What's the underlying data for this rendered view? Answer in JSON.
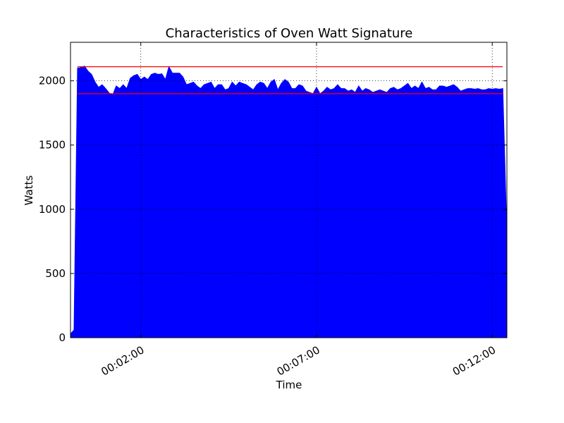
{
  "chart_data": {
    "type": "area",
    "title": "Characteristics of Oven Watt Signature",
    "xlabel": "Time",
    "ylabel": "Watts",
    "xlim": [
      0,
      745
    ],
    "ylim": [
      0,
      2300
    ],
    "x_unit": "seconds",
    "x_ticks": [
      {
        "value": 120,
        "label": "00:02:00"
      },
      {
        "value": 420,
        "label": "00:07:00"
      },
      {
        "value": 720,
        "label": "00:12:00"
      }
    ],
    "y_ticks": [
      0,
      500,
      1000,
      1500,
      2000
    ],
    "grid": true,
    "fill_color": "#0000ff",
    "series": [
      {
        "x": [
          0,
          6,
          12,
          15,
          24,
          30,
          36,
          42,
          48,
          54,
          60,
          66,
          72,
          78,
          84,
          90,
          96,
          102,
          108,
          114,
          120,
          126,
          132,
          138,
          144,
          150,
          156,
          162,
          168,
          174,
          180,
          186,
          192,
          198,
          204,
          210,
          216,
          222,
          228,
          234,
          240,
          246,
          252,
          258,
          264,
          270,
          276,
          282,
          288,
          294,
          300,
          306,
          312,
          318,
          324,
          330,
          336,
          342,
          348,
          354,
          360,
          366,
          372,
          378,
          384,
          390,
          396,
          402,
          408,
          414,
          420,
          426,
          432,
          438,
          444,
          450,
          456,
          462,
          468,
          474,
          480,
          486,
          492,
          498,
          504,
          510,
          516,
          522,
          528,
          534,
          540,
          546,
          552,
          558,
          564,
          570,
          576,
          582,
          588,
          594,
          600,
          606,
          612,
          618,
          624,
          630,
          636,
          642,
          648,
          654,
          660,
          666,
          672,
          678,
          684,
          690,
          696,
          702,
          708,
          714,
          720,
          726,
          732,
          738,
          745
        ],
        "y": [
          30,
          60,
          2100,
          2100,
          2115,
          2075,
          2050,
          1990,
          1950,
          1970,
          1940,
          1905,
          1890,
          1960,
          1940,
          1970,
          1940,
          2020,
          2040,
          2050,
          2010,
          2030,
          2010,
          2050,
          2060,
          2050,
          2055,
          2010,
          2110,
          2060,
          2060,
          2060,
          2030,
          1970,
          1980,
          1990,
          1960,
          1940,
          1970,
          1980,
          1990,
          1940,
          1970,
          1970,
          1930,
          1940,
          1990,
          1960,
          1990,
          1980,
          1970,
          1950,
          1930,
          1970,
          1990,
          1980,
          1940,
          1990,
          2010,
          1930,
          1980,
          2010,
          1990,
          1940,
          1940,
          1970,
          1960,
          1920,
          1910,
          1900,
          1950,
          1900,
          1920,
          1950,
          1930,
          1940,
          1970,
          1940,
          1940,
          1920,
          1930,
          1910,
          1960,
          1920,
          1940,
          1930,
          1910,
          1920,
          1930,
          1920,
          1910,
          1940,
          1950,
          1930,
          1940,
          1960,
          1980,
          1940,
          1960,
          1940,
          1990,
          1940,
          1950,
          1930,
          1930,
          1960,
          1960,
          1950,
          1960,
          1970,
          1950,
          1920,
          1930,
          1940,
          1940,
          1935,
          1940,
          1930,
          1930,
          1940,
          1935,
          1940,
          1935,
          1940,
          800
        ]
      }
    ],
    "reference_lines": [
      {
        "y": 2110,
        "color": "#ff0000"
      },
      {
        "y": 1900,
        "color": "#ff0000"
      }
    ]
  }
}
